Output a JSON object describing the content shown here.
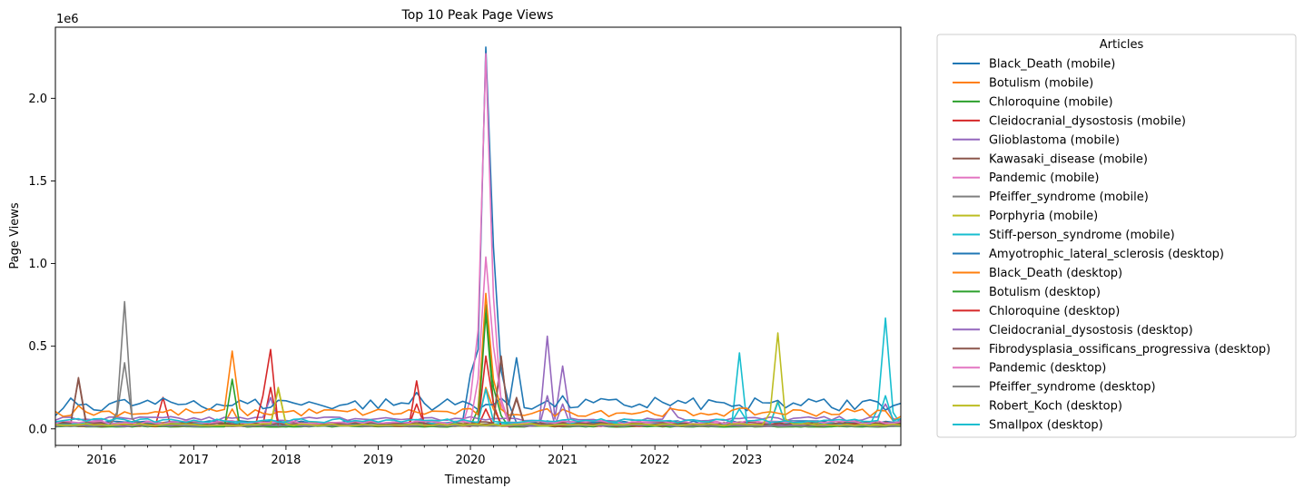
{
  "chart_data": {
    "type": "line",
    "title": "Top 10 Peak Page Views",
    "xlabel": "Timestamp",
    "ylabel": "Page Views",
    "y_offset_text": "1e6",
    "x_range": [
      "2015-07-01",
      "2024-09-01"
    ],
    "ylim": [
      -100000,
      2430000
    ],
    "x_ticks": [
      {
        "date": "2016-01-01",
        "label": "2016"
      },
      {
        "date": "2017-01-01",
        "label": "2017"
      },
      {
        "date": "2018-01-01",
        "label": "2018"
      },
      {
        "date": "2019-01-01",
        "label": "2019"
      },
      {
        "date": "2020-01-01",
        "label": "2020"
      },
      {
        "date": "2021-01-01",
        "label": "2021"
      },
      {
        "date": "2022-01-01",
        "label": "2022"
      },
      {
        "date": "2023-01-01",
        "label": "2023"
      },
      {
        "date": "2024-01-01",
        "label": "2024"
      }
    ],
    "y_ticks": [
      {
        "value": 0,
        "label": "0.0"
      },
      {
        "value": 500000,
        "label": "0.5"
      },
      {
        "value": 1000000,
        "label": "1.0"
      },
      {
        "value": 1500000,
        "label": "1.5"
      },
      {
        "value": 2000000,
        "label": "2.0"
      }
    ],
    "grid": false,
    "legend": {
      "title": "Articles",
      "position": "outside-right"
    },
    "series": [
      {
        "name": "Black_Death (mobile)",
        "color": "#1f77b4",
        "baseline": 40000,
        "points": [
          [
            "2020-01-01",
            330000
          ],
          [
            "2020-02-01",
            480000
          ],
          [
            "2020-03-01",
            2310000
          ],
          [
            "2020-04-01",
            1100000
          ],
          [
            "2020-05-01",
            350000
          ],
          [
            "2020-06-01",
            150000
          ]
        ]
      },
      {
        "name": "Botulism (mobile)",
        "color": "#ff7f0e",
        "baseline": 30000,
        "points": [
          [
            "2017-06-01",
            120000
          ],
          [
            "2020-03-01",
            250000
          ],
          [
            "2020-04-01",
            120000
          ]
        ]
      },
      {
        "name": "Chloroquine (mobile)",
        "color": "#2ca02c",
        "baseline": 15000,
        "points": [
          [
            "2020-02-01",
            120000
          ],
          [
            "2020-03-01",
            750000
          ],
          [
            "2020-04-01",
            250000
          ],
          [
            "2020-05-01",
            80000
          ]
        ]
      },
      {
        "name": "Cleidocranial_dysostosis (mobile)",
        "color": "#d62728",
        "baseline": 20000,
        "points": [
          [
            "2016-09-01",
            190000
          ],
          [
            "2017-11-01",
            250000
          ],
          [
            "2019-06-01",
            150000
          ],
          [
            "2020-03-01",
            120000
          ]
        ]
      },
      {
        "name": "Glioblastoma (mobile)",
        "color": "#9467bd",
        "baseline": 60000,
        "points": [
          [
            "2017-11-01",
            190000
          ],
          [
            "2020-11-01",
            560000
          ],
          [
            "2020-12-01",
            60000
          ],
          [
            "2021-01-01",
            380000
          ],
          [
            "2022-03-01",
            130000
          ],
          [
            "2024-07-01",
            150000
          ]
        ]
      },
      {
        "name": "Kawasaki_disease (mobile)",
        "color": "#8c564b",
        "baseline": 35000,
        "points": [
          [
            "2015-10-01",
            310000
          ],
          [
            "2020-05-01",
            440000
          ],
          [
            "2020-07-01",
            190000
          ]
        ]
      },
      {
        "name": "Pandemic (mobile)",
        "color": "#e377c2",
        "baseline": 30000,
        "points": [
          [
            "2020-01-01",
            180000
          ],
          [
            "2020-02-01",
            600000
          ],
          [
            "2020-03-01",
            2270000
          ],
          [
            "2020-04-01",
            800000
          ],
          [
            "2020-05-01",
            150000
          ]
        ]
      },
      {
        "name": "Pfeiffer_syndrome (mobile)",
        "color": "#7f7f7f",
        "baseline": 20000,
        "points": [
          [
            "2016-03-01",
            80000
          ],
          [
            "2016-04-01",
            400000
          ],
          [
            "2016-05-01",
            60000
          ]
        ]
      },
      {
        "name": "Porphyria (mobile)",
        "color": "#bcbd22",
        "baseline": 25000,
        "points": [
          [
            "2017-12-01",
            250000
          ],
          [
            "2023-05-01",
            170000
          ]
        ]
      },
      {
        "name": "Stiff-person_syndrome (mobile)",
        "color": "#17becf",
        "baseline": 30000,
        "points": [
          [
            "2022-12-01",
            460000
          ],
          [
            "2023-05-01",
            160000
          ],
          [
            "2024-06-01",
            120000
          ],
          [
            "2024-07-01",
            670000
          ],
          [
            "2024-08-01",
            100000
          ]
        ]
      },
      {
        "name": "Amyotrophic_lateral_sclerosis (desktop)",
        "color": "#1f77b4",
        "baseline": 150000,
        "points": [
          [
            "2015-07-01",
            80000
          ],
          [
            "2016-01-01",
            110000
          ],
          [
            "2017-01-01",
            170000
          ],
          [
            "2018-01-01",
            170000
          ],
          [
            "2019-06-01",
            220000
          ],
          [
            "2020-07-01",
            430000
          ],
          [
            "2021-01-01",
            200000
          ],
          [
            "2022-01-01",
            190000
          ],
          [
            "2023-01-01",
            110000
          ],
          [
            "2024-01-01",
            110000
          ],
          [
            "2024-08-01",
            140000
          ]
        ]
      },
      {
        "name": "Black_Death (desktop)",
        "color": "#ff7f0e",
        "baseline": 100000,
        "points": [
          [
            "2015-10-01",
            140000
          ],
          [
            "2017-06-01",
            470000
          ],
          [
            "2020-03-01",
            820000
          ],
          [
            "2020-04-01",
            300000
          ],
          [
            "2021-06-01",
            110000
          ],
          [
            "2022-06-01",
            80000
          ],
          [
            "2024-08-01",
            50000
          ]
        ]
      },
      {
        "name": "Botulism (desktop)",
        "color": "#2ca02c",
        "baseline": 15000,
        "points": [
          [
            "2017-06-01",
            300000
          ],
          [
            "2020-03-01",
            700000
          ],
          [
            "2020-04-01",
            150000
          ]
        ]
      },
      {
        "name": "Chloroquine (desktop)",
        "color": "#d62728",
        "baseline": 20000,
        "points": [
          [
            "2017-10-01",
            200000
          ],
          [
            "2017-11-01",
            480000
          ],
          [
            "2019-06-01",
            290000
          ],
          [
            "2020-03-01",
            440000
          ],
          [
            "2020-04-01",
            150000
          ]
        ]
      },
      {
        "name": "Cleidocranial_dysostosis (desktop)",
        "color": "#9467bd",
        "baseline": 20000,
        "points": [
          [
            "2020-11-01",
            200000
          ],
          [
            "2021-01-01",
            150000
          ]
        ]
      },
      {
        "name": "Fibrodysplasia_ossificans_progressiva (desktop)",
        "color": "#8c564b",
        "baseline": 30000,
        "points": [
          [
            "2015-10-01",
            300000
          ],
          [
            "2020-05-01",
            430000
          ],
          [
            "2020-07-01",
            180000
          ]
        ]
      },
      {
        "name": "Pandemic (desktop)",
        "color": "#e377c2",
        "baseline": 40000,
        "points": [
          [
            "2020-02-01",
            300000
          ],
          [
            "2020-03-01",
            1040000
          ],
          [
            "2020-04-01",
            500000
          ],
          [
            "2020-05-01",
            180000
          ]
        ]
      },
      {
        "name": "Pfeiffer_syndrome (desktop)",
        "color": "#7f7f7f",
        "baseline": 20000,
        "points": [
          [
            "2016-03-01",
            100000
          ],
          [
            "2016-04-01",
            770000
          ],
          [
            "2016-05-01",
            60000
          ]
        ]
      },
      {
        "name": "Robert_Koch (desktop)",
        "color": "#bcbd22",
        "baseline": 25000,
        "points": [
          [
            "2017-12-01",
            240000
          ],
          [
            "2023-04-01",
            100000
          ],
          [
            "2023-05-01",
            580000
          ],
          [
            "2023-06-01",
            60000
          ]
        ]
      },
      {
        "name": "Smallpox (desktop)",
        "color": "#17becf",
        "baseline": 50000,
        "points": [
          [
            "2020-03-01",
            240000
          ],
          [
            "2022-12-01",
            120000
          ],
          [
            "2024-07-01",
            200000
          ]
        ]
      }
    ]
  }
}
